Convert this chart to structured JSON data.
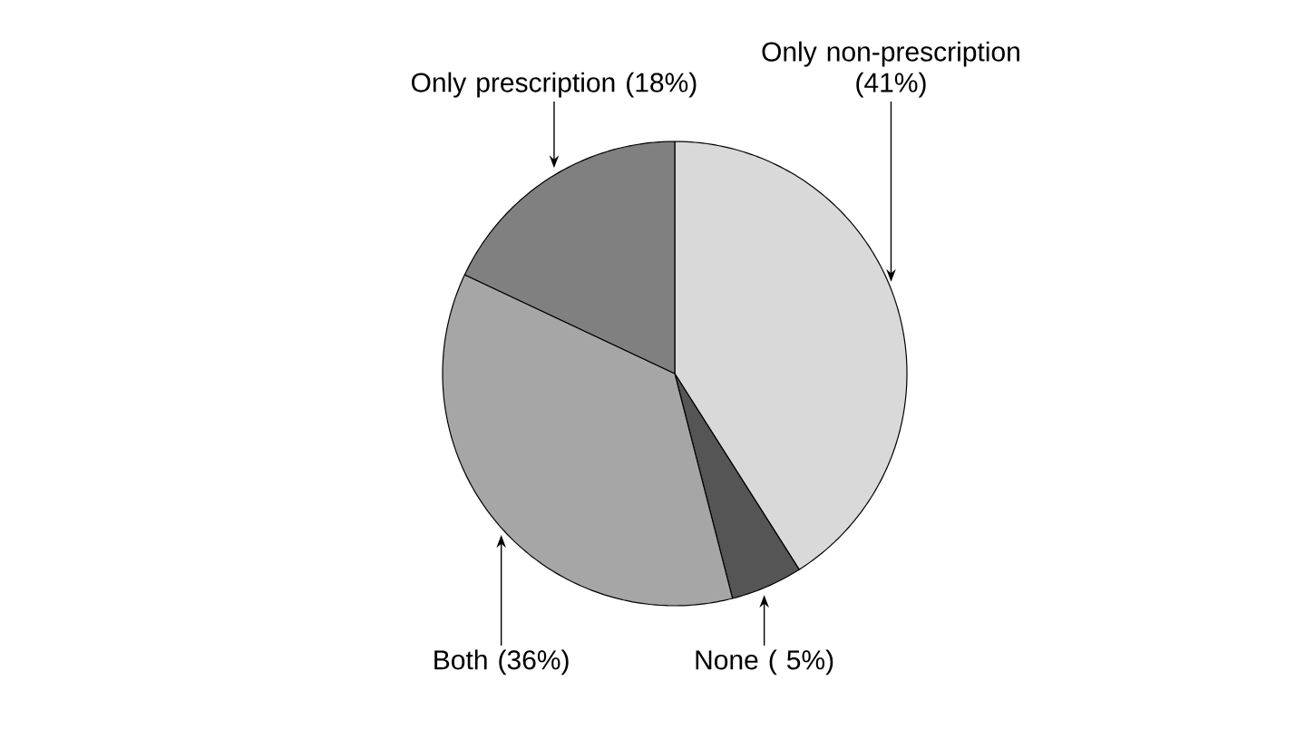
{
  "chart_data": {
    "type": "pie",
    "categories": [
      "Only non-prescription (41%)",
      "None ( 5%)",
      "Both (36%)",
      "Only prescription (18%)"
    ],
    "values": [
      41,
      5,
      36,
      18
    ],
    "colors": [
      "#d9d9d9",
      "#555555",
      "#a6a6a6",
      "#808080"
    ]
  }
}
